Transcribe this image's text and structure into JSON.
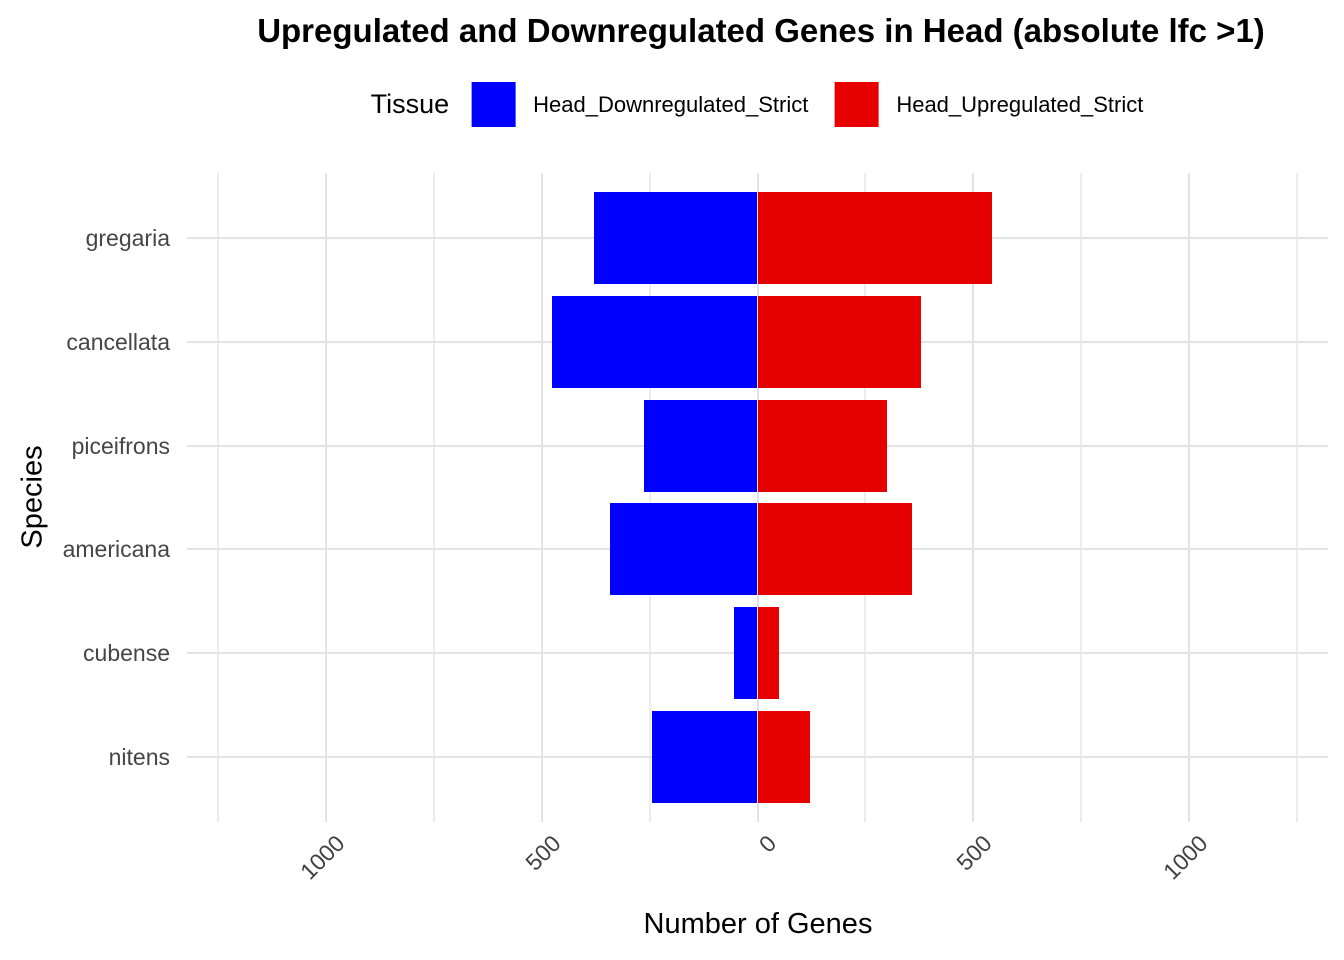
{
  "title": "Upregulated and Downregulated Genes in Head (absolute lfc >1)",
  "legend": {
    "title": "Tissue",
    "entries": [
      {
        "label": "Head_Downregulated_Strict",
        "color": "#0000FF"
      },
      {
        "label": "Head_Upregulated_Strict",
        "color": "#E60000"
      }
    ]
  },
  "chart_data": {
    "type": "bar",
    "orientation": "horizontal_diverging",
    "title": "Upregulated and Downregulated Genes in Head (absolute lfc >1)",
    "xlabel": "Number of Genes",
    "ylabel": "Species",
    "legend_title": "Tissue",
    "legend_position": "top",
    "grid": true,
    "background": "#ffffff",
    "categories": [
      "gregaria",
      "cancellata",
      "piceifrons",
      "americana",
      "cubense",
      "nitens"
    ],
    "series": [
      {
        "name": "Head_Downregulated_Strict",
        "color": "#0000FF",
        "direction": "left",
        "values": [
          380,
          476,
          264,
          341,
          55,
          245
        ]
      },
      {
        "name": "Head_Upregulated_Strict",
        "color": "#E60000",
        "direction": "right",
        "values": [
          543,
          378,
          301,
          358,
          49,
          121
        ]
      }
    ],
    "x_axis": {
      "tick_values": [
        -1000,
        -500,
        0,
        500,
        1000
      ],
      "tick_labels": [
        "1000",
        "500",
        "0",
        "500",
        "1000"
      ],
      "minor_gridlines": [
        -1250,
        -750,
        -250,
        250,
        750,
        1250
      ],
      "xlim": [
        -1323,
        1323
      ]
    },
    "bar_width_fraction": 0.886
  }
}
